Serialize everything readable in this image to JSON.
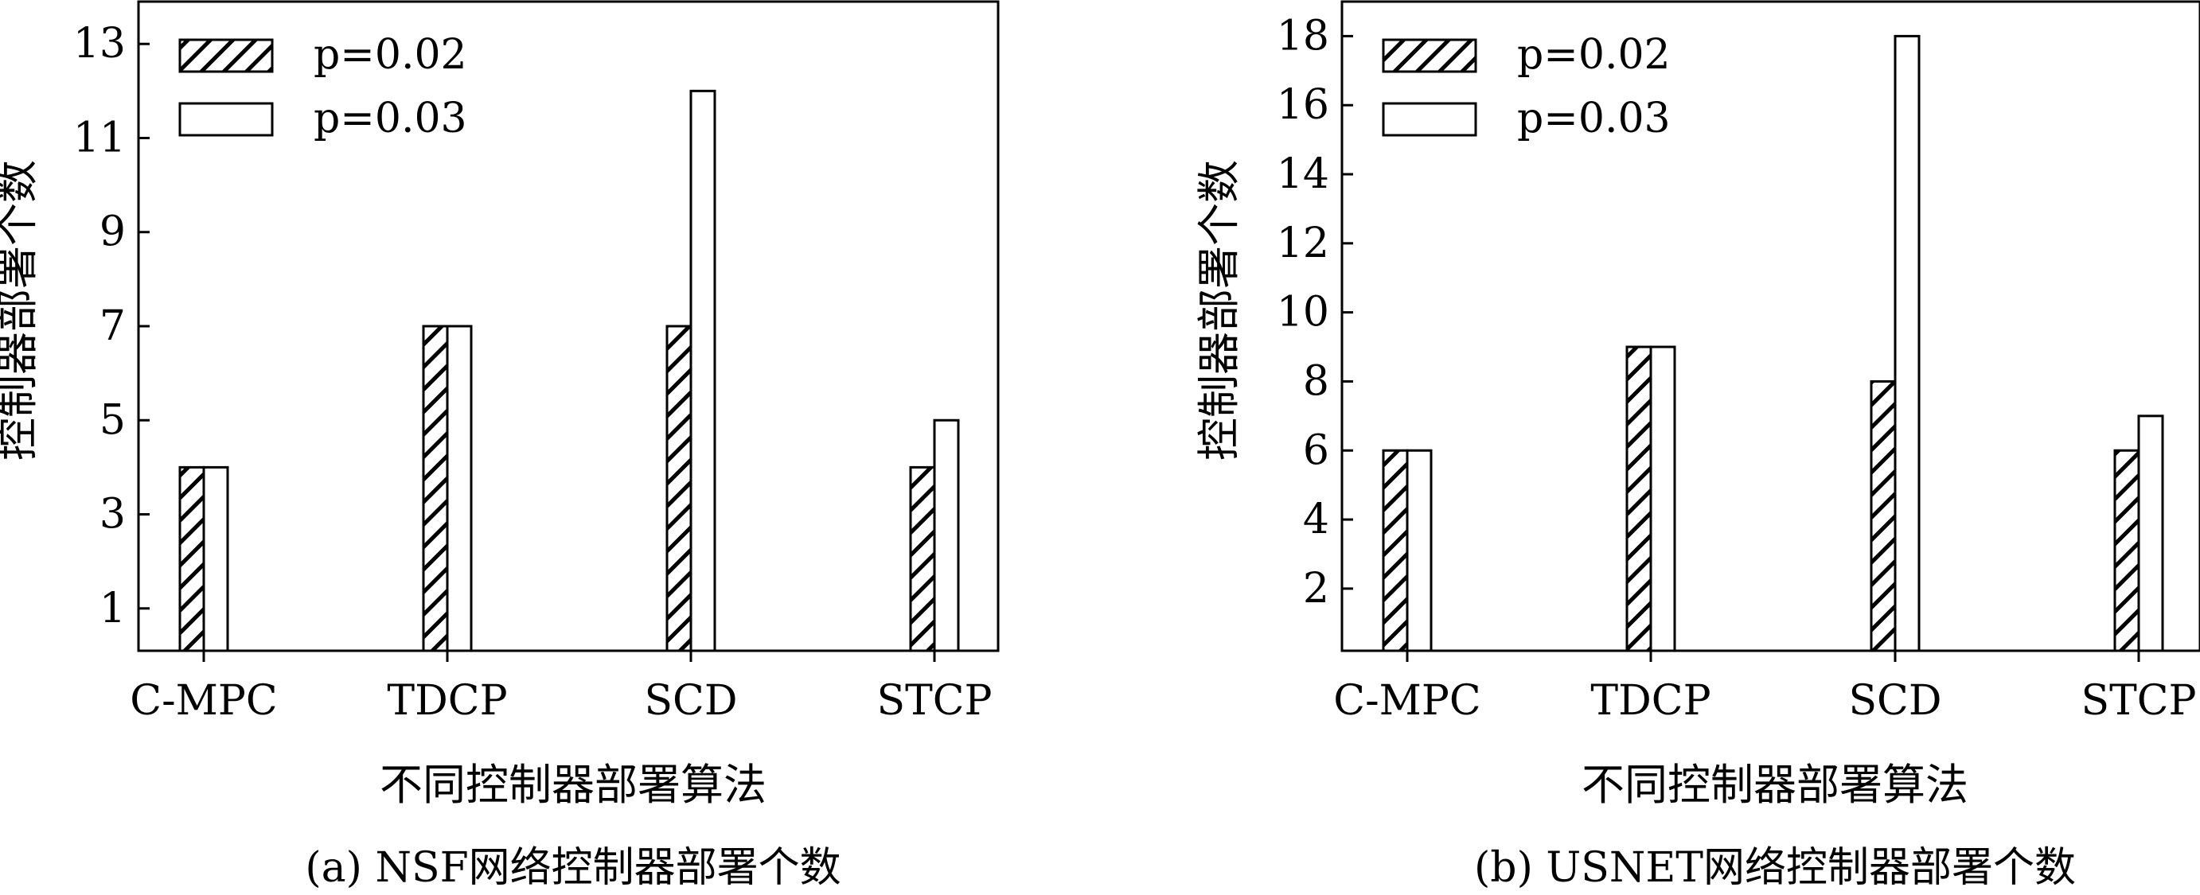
{
  "chart_data": [
    {
      "type": "bar",
      "caption": "(a) NSF网络控制器部署个数",
      "xlabel": "不同控制器部署算法",
      "ylabel": "控制器部署个数",
      "categories": [
        "C-MPC",
        "TDCP",
        "SCD",
        "STCP"
      ],
      "series": [
        {
          "name": "p=0.02",
          "values": [
            4,
            7,
            7,
            4
          ],
          "style": "hatched"
        },
        {
          "name": "p=0.03",
          "values": [
            4,
            7,
            12,
            5
          ],
          "style": "open"
        }
      ],
      "ylim": [
        0.1,
        13.9
      ],
      "yticks": [
        1,
        3,
        5,
        7,
        9,
        11,
        13
      ],
      "grid": false,
      "legend": "top-left"
    },
    {
      "type": "bar",
      "caption": "(b) USNET网络控制器部署个数",
      "xlabel": "不同控制器部署算法",
      "ylabel": "控制器部署个数",
      "categories": [
        "C-MPC",
        "TDCP",
        "SCD",
        "STCP"
      ],
      "series": [
        {
          "name": "p=0.02",
          "values": [
            6,
            9,
            8,
            6
          ],
          "style": "hatched"
        },
        {
          "name": "p=0.03",
          "values": [
            6,
            9,
            18,
            7
          ],
          "style": "open"
        }
      ],
      "ylim": [
        0.2,
        19
      ],
      "yticks": [
        2,
        4,
        6,
        8,
        10,
        12,
        14,
        16,
        18
      ],
      "grid": false,
      "legend": "top-left"
    }
  ],
  "colors": {
    "axis": "#000000",
    "bar_fill": "#ffffff",
    "hatch": "#000000"
  }
}
